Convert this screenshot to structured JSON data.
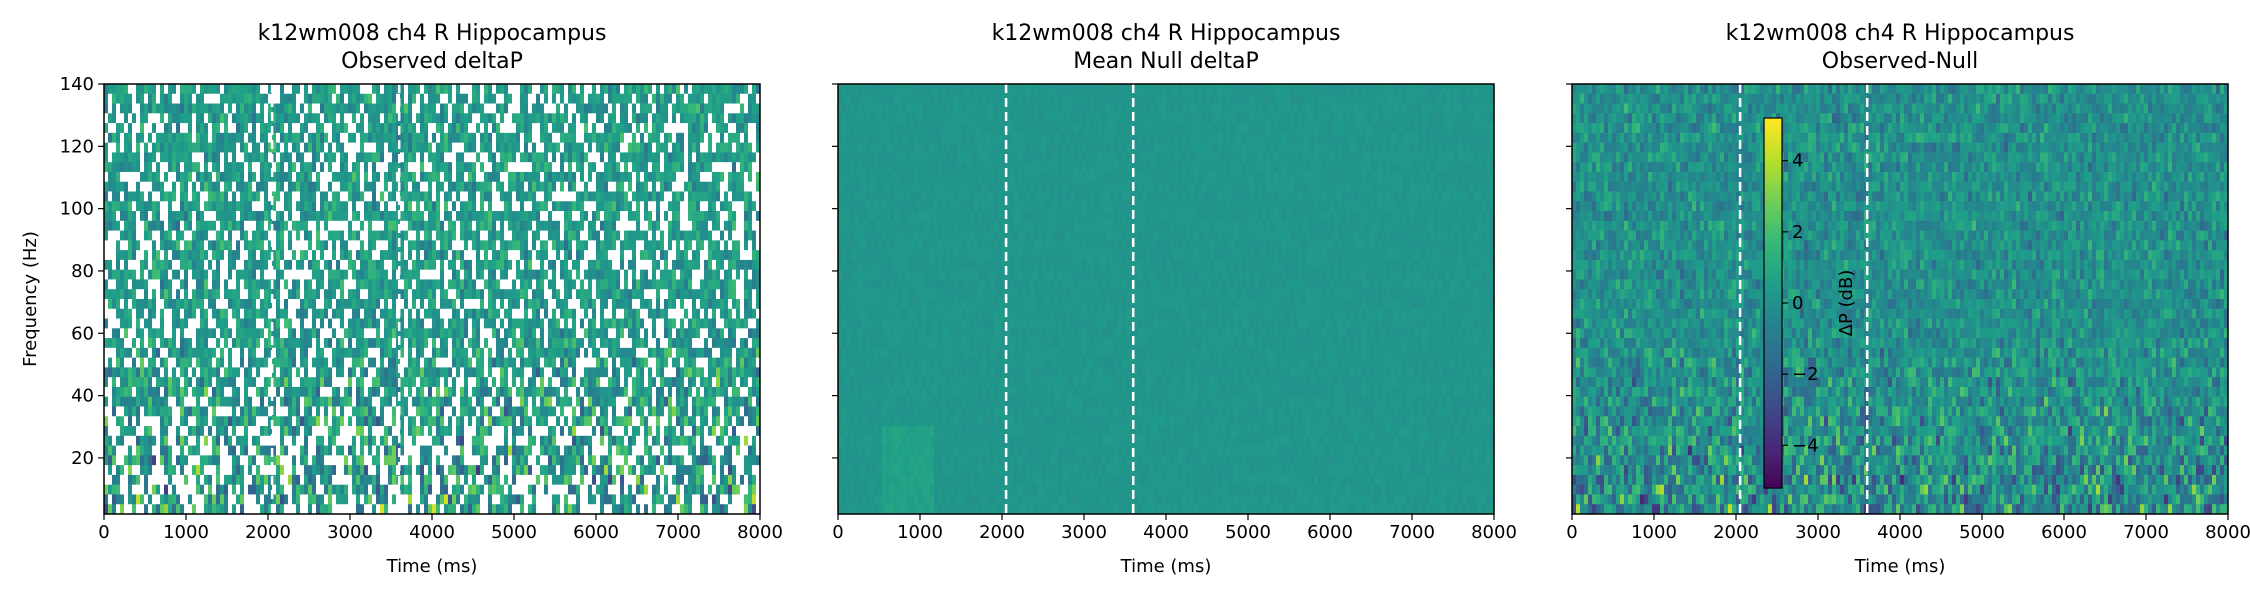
{
  "colorbar": {
    "label": "ΔP (dB)",
    "ticks": [
      4,
      2,
      0,
      -2,
      -4
    ],
    "tick_labels": [
      "4",
      "2",
      "0",
      "−2",
      "−4"
    ],
    "range": [
      -5.2,
      5.2
    ]
  },
  "colormap": "viridis",
  "chart_data": [
    {
      "type": "heatmap",
      "title": "k12wm008 ch4 R Hippocampus",
      "subtitle": "Observed deltaP",
      "xlabel": "Time (ms)",
      "ylabel": "Frequency (Hz)",
      "xlim": [
        0,
        8000
      ],
      "ylim": [
        2,
        140
      ],
      "xticks": [
        0,
        1000,
        2000,
        3000,
        4000,
        5000,
        6000,
        7000,
        8000
      ],
      "yticks": [
        20,
        40,
        60,
        80,
        100,
        120,
        140
      ],
      "vlines": [
        2050,
        3600
      ],
      "masked": true
    },
    {
      "type": "heatmap",
      "title": "k12wm008 ch4 R Hippocampus",
      "subtitle": "Mean Null deltaP",
      "xlabel": "Time (ms)",
      "ylabel": "",
      "xlim": [
        0,
        8000
      ],
      "ylim": [
        2,
        140
      ],
      "xticks": [
        0,
        1000,
        2000,
        3000,
        4000,
        5000,
        6000,
        7000,
        8000
      ],
      "yticks": [
        20,
        40,
        60,
        80,
        100,
        120,
        140
      ],
      "vlines": [
        2050,
        3600
      ],
      "masked": false
    },
    {
      "type": "heatmap",
      "title": "k12wm008 ch4 R Hippocampus",
      "subtitle": "Observed-Null",
      "xlabel": "Time (ms)",
      "ylabel": "",
      "xlim": [
        0,
        8000
      ],
      "ylim": [
        2,
        140
      ],
      "xticks": [
        0,
        1000,
        2000,
        3000,
        4000,
        5000,
        6000,
        7000,
        8000
      ],
      "yticks": [
        20,
        40,
        60,
        80,
        100,
        120,
        140
      ],
      "vlines": [
        2050,
        3600
      ],
      "masked": false
    }
  ]
}
